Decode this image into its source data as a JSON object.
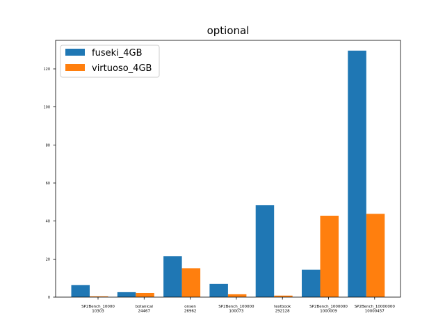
{
  "chart_data": {
    "type": "bar",
    "title": "optional",
    "xlabel": "",
    "ylabel": "",
    "ylim": [
      0,
      135
    ],
    "yticks": [
      0,
      20,
      40,
      60,
      80,
      100,
      120
    ],
    "ytick_labels": [
      "0",
      "20",
      "40",
      "60",
      "80",
      "100",
      "120"
    ],
    "categories": [
      [
        "SP2Bench_10000",
        "10303"
      ],
      [
        "botanical",
        "24467"
      ],
      [
        "onsen",
        "26962"
      ],
      [
        "SP2Bench_100000",
        "100073"
      ],
      [
        "textbook",
        "292128"
      ],
      [
        "SP2Bench_1000000",
        "1000009"
      ],
      [
        "SP2Bench_10000000",
        "10000457"
      ]
    ],
    "series": [
      {
        "name": "fuseki_4GB",
        "color": "#1f77b4",
        "values": [
          6.3,
          2.6,
          21.5,
          7.0,
          48.3,
          14.4,
          129.6
        ]
      },
      {
        "name": "virtuoso_4GB",
        "color": "#ff7f0e",
        "values": [
          0.4,
          2.2,
          15.2,
          1.5,
          0.8,
          42.8,
          43.8
        ]
      }
    ],
    "grid": false,
    "legend_position": "top-left"
  }
}
